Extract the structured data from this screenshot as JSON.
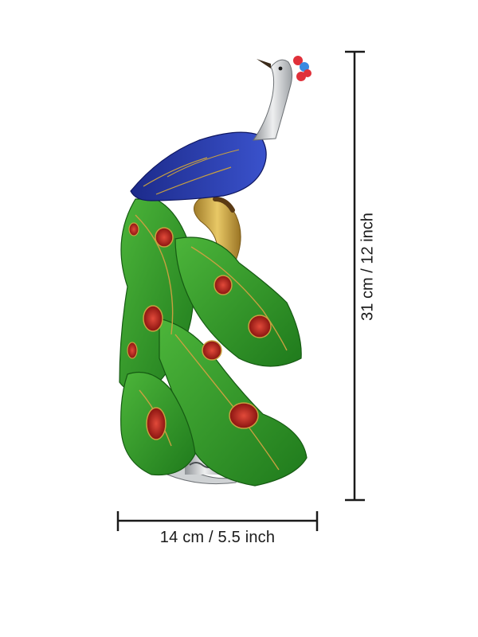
{
  "dimensions": {
    "width_label": "14 cm / 5.5 inch",
    "height_label": "31 cm / 12 inch"
  },
  "product": {
    "icon": "peacock-figurine",
    "colors": {
      "feather_green": "#2f9a2a",
      "feather_dark_green": "#1e6e1a",
      "eye_red": "#c0281e",
      "gold": "#c8a040",
      "body_blue": "#2638a8",
      "neck_silver": "#c8cacc",
      "crest_red": "#e0303a",
      "crest_blue": "#3a8ae0"
    }
  },
  "dimension_line_color": "#1a1a1a"
}
